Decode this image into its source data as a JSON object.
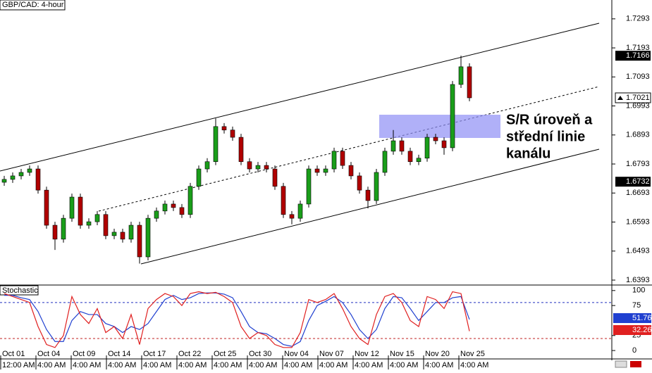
{
  "chart_data": {
    "type": "candlestick",
    "title": "GBP/CAD: 4-hour",
    "annotation": [
      "S/R úroveň a",
      "střední linie",
      "kanálu"
    ],
    "up_color": "#1a9e1a",
    "down_color": "#b00000",
    "open": [
      1.673,
      1.674,
      1.6752,
      1.6764,
      1.6776,
      1.6703,
      1.6582,
      1.6534,
      1.6606,
      1.6679,
      1.6582,
      1.6594,
      1.6619,
      1.6546,
      1.6558,
      1.6534,
      1.6582,
      1.6473,
      1.6606,
      1.6631,
      1.6655,
      1.6643,
      1.6619,
      1.6716,
      1.6776,
      1.6801,
      1.6922,
      1.691,
      1.6885,
      1.6801,
      1.6776,
      1.6788,
      1.6776,
      1.6716,
      1.6619,
      1.6606,
      1.6655,
      1.6776,
      1.6764,
      1.6776,
      1.6837,
      1.6788,
      1.6752,
      1.6703,
      1.6667,
      1.6764,
      1.6837,
      1.6873,
      1.6837,
      1.6801,
      1.6813,
      1.6885,
      1.6873,
      1.6849,
      1.7067,
      1.7128
    ],
    "high": [
      1.6752,
      1.6764,
      1.6776,
      1.6788,
      1.6788,
      1.6715,
      1.6594,
      1.6618,
      1.6691,
      1.6691,
      1.6606,
      1.6631,
      1.6631,
      1.657,
      1.657,
      1.6594,
      1.6594,
      1.6618,
      1.6643,
      1.6667,
      1.6667,
      1.6655,
      1.6728,
      1.6788,
      1.6813,
      1.695,
      1.6934,
      1.6922,
      1.6897,
      1.6813,
      1.68,
      1.68,
      1.6788,
      1.6728,
      1.6631,
      1.6667,
      1.6788,
      1.6788,
      1.6788,
      1.6849,
      1.6849,
      1.68,
      1.6764,
      1.6715,
      1.6776,
      1.6849,
      1.691,
      1.6885,
      1.6849,
      1.6825,
      1.6897,
      1.6897,
      1.6885,
      1.7079,
      1.7166,
      1.714
    ],
    "low": [
      1.6718,
      1.6728,
      1.674,
      1.6752,
      1.6691,
      1.657,
      1.6497,
      1.6522,
      1.6594,
      1.657,
      1.657,
      1.6582,
      1.6534,
      1.6534,
      1.6522,
      1.6522,
      1.645,
      1.6461,
      1.6594,
      1.6619,
      1.6631,
      1.6607,
      1.6607,
      1.6704,
      1.6764,
      1.6789,
      1.6898,
      1.6873,
      1.6789,
      1.6764,
      1.6764,
      1.6764,
      1.6704,
      1.6607,
      1.6585,
      1.6594,
      1.6643,
      1.6752,
      1.6752,
      1.6764,
      1.6776,
      1.674,
      1.6691,
      1.664,
      1.6655,
      1.6752,
      1.6825,
      1.6825,
      1.6789,
      1.6789,
      1.6801,
      1.6861,
      1.6825,
      1.6837,
      1.7055,
      1.7009
    ],
    "close": [
      1.674,
      1.6752,
      1.6764,
      1.6776,
      1.6703,
      1.6582,
      1.6534,
      1.6606,
      1.6679,
      1.6582,
      1.6594,
      1.6619,
      1.6546,
      1.6558,
      1.6534,
      1.6582,
      1.6473,
      1.6606,
      1.6631,
      1.6655,
      1.6643,
      1.6619,
      1.6716,
      1.6776,
      1.6801,
      1.6922,
      1.691,
      1.6885,
      1.6801,
      1.6776,
      1.6788,
      1.6776,
      1.6716,
      1.6619,
      1.6606,
      1.6655,
      1.6776,
      1.6764,
      1.6776,
      1.6837,
      1.6788,
      1.6752,
      1.6703,
      1.6667,
      1.6764,
      1.6837,
      1.6873,
      1.6837,
      1.6801,
      1.6813,
      1.6885,
      1.6873,
      1.6849,
      1.7067,
      1.7128,
      1.7021
    ],
    "ylim": [
      1.6376,
      1.7358
    ],
    "yticks": [
      1.7293,
      1.7193,
      1.7093,
      1.6993,
      1.6893,
      1.6793,
      1.6693,
      1.6593,
      1.6493,
      1.6393
    ],
    "level_markers": [
      1.7166,
      1.6732
    ],
    "last_price": 1.7021,
    "x_labels": [
      {
        "date": "Oct 01",
        "time": "12:00 AM"
      },
      {
        "date": "Oct 04",
        "time": "4:00 AM"
      },
      {
        "date": "Oct 09",
        "time": "4:00 AM"
      },
      {
        "date": "Oct 14",
        "time": "4:00 AM"
      },
      {
        "date": "Oct 17",
        "time": "4:00 AM"
      },
      {
        "date": "Oct 22",
        "time": "4:00 AM"
      },
      {
        "date": "Oct 25",
        "time": "4:00 AM"
      },
      {
        "date": "Oct 30",
        "time": "4:00 AM"
      },
      {
        "date": "Nov 04",
        "time": "4:00 AM"
      },
      {
        "date": "Nov 07",
        "time": "4:00 AM"
      },
      {
        "date": "Nov 12",
        "time": "4:00 AM"
      },
      {
        "date": "Nov 15",
        "time": "4:00 AM"
      },
      {
        "date": "Nov 20",
        "time": "4:00 AM"
      },
      {
        "date": "Nov 25",
        "time": "4:00 AM"
      }
    ],
    "stochastic": {
      "title": "Stochastic",
      "ylim": [
        -14,
        108
      ],
      "yticks": [
        100,
        75,
        25,
        0
      ],
      "levels": [
        {
          "value": 80,
          "color": "#2030c0"
        },
        {
          "value": 20,
          "color": "#c02020"
        }
      ],
      "series": [
        {
          "color": "#2040d0",
          "values": [
            92,
            92,
            88,
            85,
            65,
            35,
            15,
            15,
            50,
            65,
            60,
            60,
            45,
            40,
            30,
            40,
            35,
            45,
            65,
            85,
            92,
            85,
            88,
            95,
            96,
            96,
            94,
            88,
            65,
            40,
            30,
            28,
            20,
            10,
            7,
            15,
            50,
            75,
            82,
            90,
            80,
            60,
            35,
            20,
            35,
            70,
            90,
            88,
            70,
            50,
            65,
            80,
            80,
            88,
            90,
            51.76
          ]
        },
        {
          "color": "#e02020",
          "values": [
            95,
            90,
            85,
            80,
            40,
            10,
            5,
            25,
            90,
            60,
            45,
            70,
            30,
            40,
            20,
            60,
            10,
            70,
            85,
            95,
            90,
            75,
            95,
            98,
            95,
            97,
            90,
            80,
            40,
            20,
            30,
            25,
            10,
            5,
            5,
            30,
            85,
            80,
            85,
            95,
            70,
            40,
            20,
            10,
            60,
            90,
            95,
            80,
            50,
            40,
            90,
            85,
            70,
            98,
            95,
            32.26
          ]
        }
      ]
    }
  }
}
